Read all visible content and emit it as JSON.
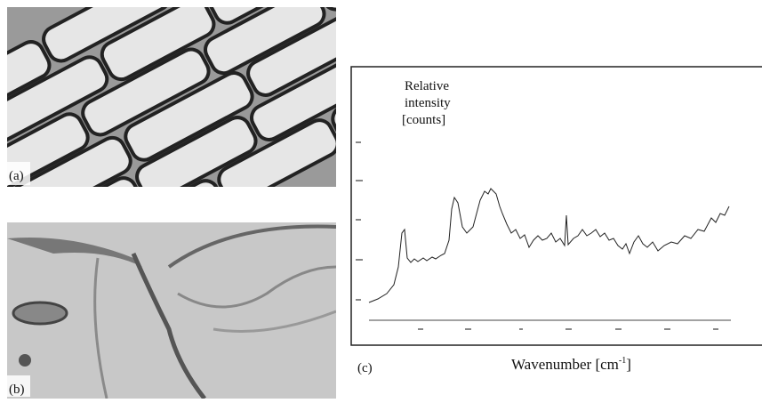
{
  "panels": {
    "a": "(a)",
    "b": "(b)",
    "c": "(c)"
  },
  "spectrum": {
    "y_label": [
      "Relative",
      "intensity",
      "[counts]"
    ],
    "x_label": {
      "text": "Wavenumber [cm",
      "sup": "-1",
      "end": "]"
    }
  }
}
